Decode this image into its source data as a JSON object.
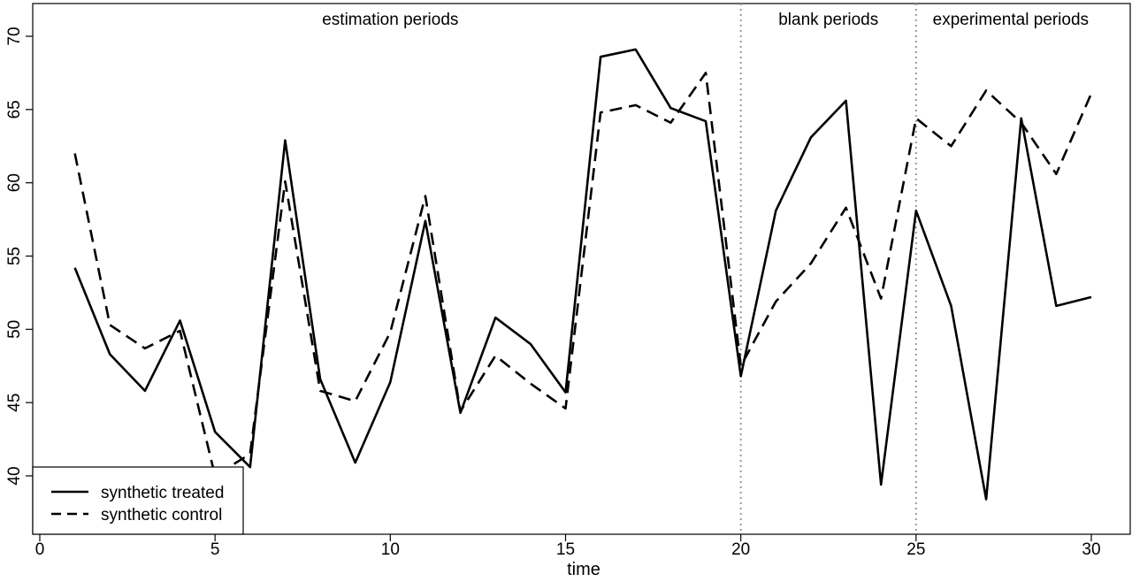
{
  "chart_data": {
    "type": "line",
    "xlabel": "time",
    "ylabel": "",
    "xlim": [
      0,
      31
    ],
    "ylim": [
      36,
      71
    ],
    "xticks": [
      0,
      5,
      10,
      15,
      20,
      25,
      30
    ],
    "yticks": [
      40,
      45,
      50,
      55,
      60,
      65,
      70
    ],
    "grid": false,
    "legend_position": "bottom-left",
    "vlines": [
      {
        "x": 20,
        "style": "dotted",
        "color": "#999999"
      },
      {
        "x": 25,
        "style": "dotted",
        "color": "#999999"
      }
    ],
    "annotations": [
      {
        "text": "estimation periods",
        "x": 10,
        "y": 70.8
      },
      {
        "text": "blank periods",
        "x": 22.5,
        "y": 70.8
      },
      {
        "text": "experimental periods",
        "x": 27.7,
        "y": 70.8
      }
    ],
    "x": [
      1,
      2,
      3,
      4,
      5,
      6,
      7,
      8,
      9,
      10,
      11,
      12,
      13,
      14,
      15,
      16,
      17,
      18,
      19,
      20,
      21,
      22,
      23,
      24,
      25,
      26,
      27,
      28,
      29,
      30
    ],
    "series": [
      {
        "name": "synthetic treated",
        "style": "solid",
        "color": "#000000",
        "values": [
          54.2,
          48.3,
          45.8,
          50.6,
          43.0,
          40.6,
          62.9,
          46.6,
          40.9,
          46.4,
          57.4,
          44.3,
          50.8,
          49.0,
          45.7,
          68.6,
          69.1,
          65.1,
          64.2,
          46.8,
          58.1,
          63.1,
          65.6,
          39.4,
          58.1,
          51.6,
          38.4,
          64.4,
          51.6,
          52.2
        ]
      },
      {
        "name": "synthetic control",
        "style": "dashed",
        "color": "#000000",
        "values": [
          62.0,
          50.3,
          48.7,
          49.9,
          40.0,
          41.5,
          60.1,
          45.8,
          45.1,
          49.8,
          59.1,
          44.4,
          48.2,
          46.3,
          44.6,
          64.8,
          65.3,
          64.1,
          67.5,
          47.5,
          51.9,
          54.5,
          58.3,
          52.1,
          64.4,
          62.5,
          66.3,
          64.1,
          60.6,
          66.1
        ]
      }
    ]
  }
}
